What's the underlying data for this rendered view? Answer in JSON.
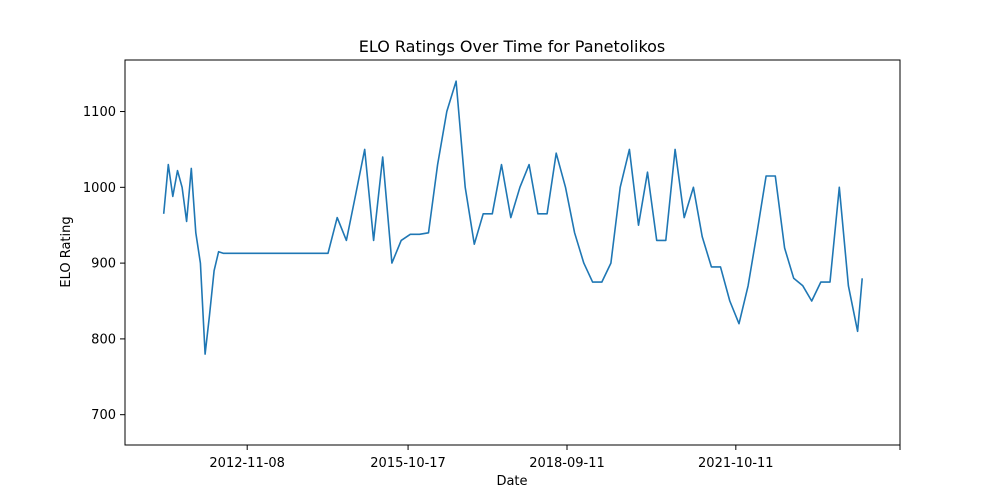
{
  "chart_data": {
    "type": "line",
    "title": "ELO Ratings Over Time for Panetolikos",
    "xlabel": "Date",
    "ylabel": "ELO Rating",
    "x_tick_labels": [
      "2012-11-08",
      "2015-10-17",
      "2018-09-11",
      "2021-10-11",
      ""
    ],
    "x_tick_dates": [
      "2012-11-08",
      "2015-10-17",
      "2018-09-11",
      "2021-10-11",
      "2024-10-10"
    ],
    "y_ticks": [
      700,
      800,
      900,
      1000,
      1100
    ],
    "xlim": [
      "2010-08-16",
      "2024-10-10"
    ],
    "ylim": [
      660,
      1168
    ],
    "grid": false,
    "legend": "none",
    "series": [
      {
        "color": "#1f77b4",
        "x": [
          "2011-05-01",
          "2011-06-01",
          "2011-07-01",
          "2011-08-01",
          "2011-09-01",
          "2011-10-01",
          "2011-11-01",
          "2011-12-01",
          "2012-01-01",
          "2012-02-01",
          "2012-03-01",
          "2012-04-01",
          "2012-05-01",
          "2012-06-01",
          "2014-05-01",
          "2014-07-01",
          "2014-09-01",
          "2014-11-01",
          "2015-01-01",
          "2015-03-01",
          "2015-05-01",
          "2015-07-01",
          "2015-09-01",
          "2015-11-01",
          "2016-01-01",
          "2016-03-01",
          "2016-05-01",
          "2016-07-01",
          "2016-09-01",
          "2016-11-01",
          "2017-01-01",
          "2017-03-01",
          "2017-05-01",
          "2017-07-01",
          "2017-09-01",
          "2017-11-01",
          "2018-01-01",
          "2018-03-01",
          "2018-05-01",
          "2018-07-01",
          "2018-09-01",
          "2018-11-01",
          "2019-01-01",
          "2019-03-01",
          "2019-05-01",
          "2019-07-01",
          "2019-09-01",
          "2019-11-01",
          "2020-01-01",
          "2020-03-01",
          "2020-05-01",
          "2020-07-01",
          "2020-09-01",
          "2020-11-01",
          "2021-01-01",
          "2021-03-01",
          "2021-05-01",
          "2021-07-01",
          "2021-09-01",
          "2021-11-01",
          "2022-01-01",
          "2022-03-01",
          "2022-05-01",
          "2022-07-01",
          "2022-09-01",
          "2022-11-01",
          "2023-01-01",
          "2023-03-01",
          "2023-05-01",
          "2023-07-01",
          "2023-09-01",
          "2023-11-01",
          "2024-01-01",
          "2024-02-01"
        ],
        "y": [
          965,
          1030,
          988,
          1022,
          1000,
          955,
          1025,
          940,
          900,
          780,
          830,
          890,
          915,
          913,
          913,
          960,
          930,
          990,
          1050,
          930,
          1040,
          900,
          930,
          938,
          938,
          940,
          1030,
          1100,
          1140,
          1000,
          925,
          965,
          965,
          1030,
          960,
          1000,
          1030,
          965,
          965,
          1045,
          1000,
          940,
          900,
          875,
          875,
          900,
          1000,
          1050,
          950,
          1020,
          930,
          930,
          1050,
          960,
          1000,
          935,
          895,
          895,
          850,
          820,
          870,
          940,
          1015,
          1015,
          920,
          880,
          870,
          850,
          875,
          875,
          1000,
          870,
          810,
          880
        ]
      }
    ]
  }
}
